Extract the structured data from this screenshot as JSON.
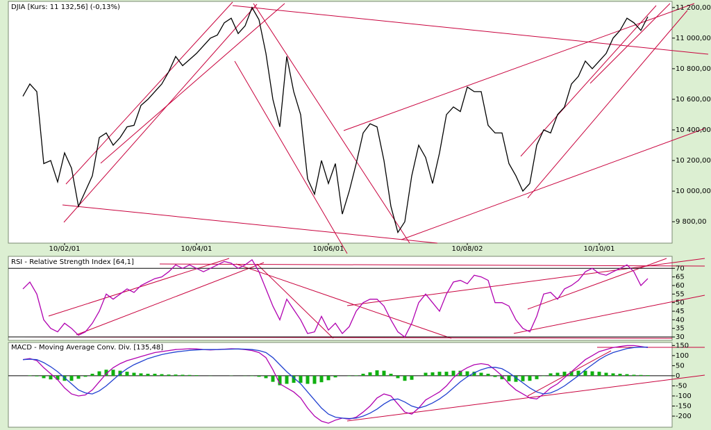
{
  "chart_data": [
    {
      "type": "line",
      "title": "DJIA [Kurs: 11 132,56] (-0,13%)",
      "color": "#000000",
      "xlim": [
        0,
        90
      ],
      "xticks": [
        {
          "value": 6,
          "label": "10/02/01"
        },
        {
          "value": 25,
          "label": "10/04/01"
        },
        {
          "value": 44,
          "label": "10/06/01"
        },
        {
          "value": 64,
          "label": "10/08/02"
        },
        {
          "value": 83,
          "label": "10/10/01"
        }
      ],
      "ylim": [
        9660,
        11240
      ],
      "yticks": [
        {
          "value": 9800,
          "label": "9 800,00"
        },
        {
          "value": 10000,
          "label": "10 000,00"
        },
        {
          "value": 10200,
          "label": "10 200,00"
        },
        {
          "value": 10400,
          "label": "10 400,00"
        },
        {
          "value": 10600,
          "label": "10 600,00"
        },
        {
          "value": 10800,
          "label": "10 800,00"
        },
        {
          "value": 11000,
          "label": "11 000,00"
        },
        {
          "value": 11200,
          "label": "11 200,00"
        }
      ],
      "values": [
        10620,
        10700,
        10650,
        10180,
        10200,
        10060,
        10250,
        10150,
        9900,
        10000,
        10100,
        10350,
        10380,
        10300,
        10350,
        10420,
        10430,
        10560,
        10600,
        10650,
        10700,
        10780,
        10880,
        10820,
        10860,
        10900,
        10950,
        11000,
        11020,
        11100,
        11130,
        11030,
        11080,
        11200,
        11120,
        10900,
        10600,
        10420,
        10880,
        10650,
        10500,
        10080,
        9980,
        10200,
        10050,
        10180,
        9850,
        10000,
        10180,
        10380,
        10440,
        10420,
        10200,
        9900,
        9730,
        9800,
        10100,
        10300,
        10220,
        10050,
        10250,
        10500,
        10550,
        10520,
        10680,
        10650,
        10650,
        10430,
        10380,
        10380,
        10180,
        10100,
        10000,
        10050,
        10300,
        10400,
        10380,
        10500,
        10550,
        10700,
        10750,
        10850,
        10800,
        10850,
        10900,
        11000,
        11050,
        11130,
        11100,
        11050,
        11140
      ]
    },
    {
      "type": "line",
      "title": "RSI - Relative Strength Index [64,1]",
      "color": "#b000b0",
      "xlim": [
        0,
        90
      ],
      "ylim": [
        28,
        77
      ],
      "yticks": [
        30,
        35,
        40,
        45,
        50,
        55,
        60,
        65,
        70
      ],
      "bands": [
        30,
        70
      ],
      "values": [
        58,
        62,
        55,
        40,
        35,
        33,
        38,
        35,
        31,
        33,
        38,
        45,
        55,
        52,
        55,
        58,
        56,
        60,
        62,
        64,
        65,
        68,
        72,
        70,
        72,
        70,
        68,
        70,
        72,
        74,
        73,
        70,
        72,
        75,
        68,
        58,
        48,
        40,
        52,
        46,
        40,
        32,
        33,
        42,
        34,
        38,
        32,
        36,
        45,
        50,
        52,
        52,
        48,
        40,
        33,
        30,
        38,
        50,
        55,
        50,
        45,
        55,
        62,
        63,
        61,
        66,
        65,
        63,
        50,
        50,
        48,
        40,
        35,
        33,
        42,
        55,
        56,
        52,
        58,
        60,
        63,
        68,
        70,
        67,
        66,
        68,
        70,
        72,
        68,
        60,
        64
      ]
    },
    {
      "type": "macd",
      "title": "MACD - Moving Average Conv. Div. [135,48]",
      "xlim": [
        0,
        90
      ],
      "ylim": [
        -255,
        165
      ],
      "yticks": [
        -200,
        -150,
        -100,
        -50,
        0,
        50,
        100,
        150
      ],
      "series": [
        {
          "color": "#b000b0",
          "values": [
            80,
            85,
            75,
            40,
            10,
            -20,
            -60,
            -90,
            -100,
            -95,
            -70,
            -30,
            10,
            40,
            60,
            75,
            85,
            95,
            105,
            115,
            120,
            125,
            130,
            132,
            134,
            133,
            130,
            128,
            130,
            132,
            134,
            133,
            130,
            125,
            115,
            90,
            30,
            -40,
            -60,
            -80,
            -110,
            -160,
            -200,
            -225,
            -235,
            -220,
            -210,
            -215,
            -205,
            -180,
            -150,
            -110,
            -90,
            -100,
            -140,
            -180,
            -190,
            -160,
            -120,
            -100,
            -80,
            -50,
            -10,
            20,
            40,
            55,
            60,
            55,
            30,
            0,
            -40,
            -70,
            -90,
            -110,
            -115,
            -90,
            -60,
            -40,
            -10,
            20,
            50,
            80,
            100,
            120,
            130,
            140,
            145,
            150,
            150,
            145,
            140
          ]
        },
        {
          "color": "#2040d0",
          "values": [
            80,
            82,
            80,
            65,
            45,
            20,
            -10,
            -40,
            -70,
            -85,
            -90,
            -75,
            -50,
            -20,
            10,
            35,
            55,
            70,
            85,
            95,
            105,
            112,
            118,
            122,
            126,
            128,
            130,
            130,
            130,
            131,
            132,
            133,
            132,
            130,
            125,
            115,
            90,
            55,
            20,
            -10,
            -40,
            -80,
            -120,
            -160,
            -190,
            -205,
            -210,
            -212,
            -210,
            -200,
            -185,
            -165,
            -140,
            -120,
            -115,
            -130,
            -150,
            -160,
            -150,
            -135,
            -115,
            -90,
            -60,
            -30,
            -5,
            15,
            30,
            40,
            42,
            35,
            15,
            -10,
            -35,
            -60,
            -80,
            -90,
            -85,
            -70,
            -50,
            -25,
            0,
            30,
            55,
            80,
            100,
            115,
            125,
            135,
            140,
            142,
            142
          ]
        }
      ],
      "histogram": {
        "color": "#10b010",
        "values": [
          0,
          2,
          -3,
          -12,
          -18,
          -20,
          -25,
          -25,
          -15,
          -5,
          10,
          22,
          30,
          30,
          25,
          20,
          15,
          12,
          10,
          10,
          8,
          6,
          6,
          5,
          4,
          3,
          0,
          -1,
          0,
          0,
          1,
          0,
          -1,
          -2,
          -5,
          -12,
          -30,
          -47,
          -40,
          -35,
          -35,
          -40,
          -40,
          -32,
          -22,
          -8,
          0,
          -2,
          2,
          10,
          17,
          27,
          25,
          10,
          -12,
          -25,
          -20,
          0,
          15,
          17,
          20,
          20,
          25,
          25,
          22,
          20,
          15,
          10,
          -6,
          -17,
          -27,
          -30,
          -27,
          -25,
          -17,
          -2,
          12,
          15,
          20,
          22,
          25,
          25,
          22,
          20,
          15,
          12,
          10,
          8,
          5,
          4,
          3
        ]
      }
    }
  ]
}
